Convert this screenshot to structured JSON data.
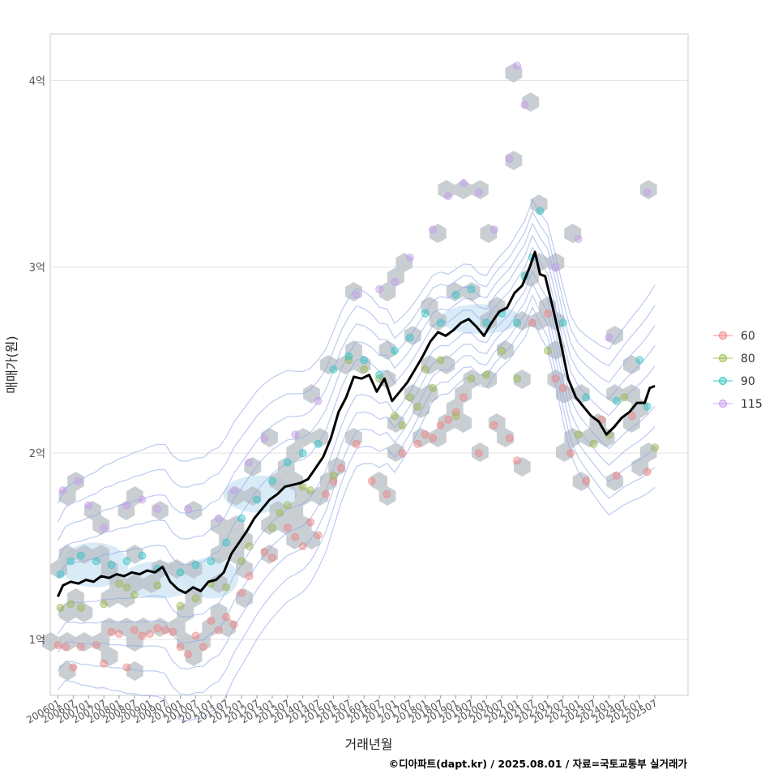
{
  "chart_data": {
    "type": "scatter",
    "xlabel": "거래년월",
    "ylabel": "매매가(원)",
    "caption": "©디아파트(dapt.kr) / 2025.08.01 / 자료=국토교통부 실거래가",
    "x_range": [
      "2005-10",
      "2026-08"
    ],
    "ylim": [
      0.7,
      4.25
    ],
    "y_ticks": [
      1,
      2,
      3,
      4
    ],
    "y_tick_labels": [
      "1억",
      "2억",
      "3억",
      "4억"
    ],
    "x_tick_labels": [
      "200601",
      "200607",
      "200701",
      "200707",
      "200801",
      "200807",
      "200901",
      "200907",
      "201001",
      "201007",
      "201101",
      "201107",
      "201201",
      "201207",
      "201301",
      "201307",
      "201401",
      "201407",
      "201501",
      "201507",
      "201601",
      "201607",
      "201701",
      "201707",
      "201801",
      "201807",
      "201901",
      "201907",
      "202001",
      "202007",
      "202101",
      "202107",
      "202201",
      "202207",
      "202301",
      "202307",
      "202401",
      "202407",
      "202501",
      "202507"
    ],
    "grid": true,
    "legend_position": "right",
    "legend": [
      {
        "label": "60",
        "color": "#F08080"
      },
      {
        "label": "80",
        "color": "#9AB84A"
      },
      {
        "label": "90",
        "color": "#2EC4C4"
      },
      {
        "label": "115",
        "color": "#C59AF0"
      }
    ],
    "median_line_color": "#000000",
    "median_line": [
      [
        "2006-01",
        1.23
      ],
      [
        "2006-03",
        1.29
      ],
      [
        "2006-06",
        1.31
      ],
      [
        "2006-09",
        1.3
      ],
      [
        "2006-12",
        1.32
      ],
      [
        "2007-03",
        1.31
      ],
      [
        "2007-06",
        1.34
      ],
      [
        "2007-09",
        1.33
      ],
      [
        "2007-12",
        1.35
      ],
      [
        "2008-03",
        1.34
      ],
      [
        "2008-06",
        1.36
      ],
      [
        "2008-09",
        1.35
      ],
      [
        "2008-12",
        1.37
      ],
      [
        "2009-03",
        1.36
      ],
      [
        "2009-06",
        1.39
      ],
      [
        "2009-09",
        1.31
      ],
      [
        "2009-12",
        1.27
      ],
      [
        "2010-03",
        1.25
      ],
      [
        "2010-06",
        1.28
      ],
      [
        "2010-09",
        1.26
      ],
      [
        "2010-12",
        1.31
      ],
      [
        "2011-03",
        1.32
      ],
      [
        "2011-06",
        1.36
      ],
      [
        "2011-09",
        1.46
      ],
      [
        "2011-12",
        1.52
      ],
      [
        "2012-03",
        1.58
      ],
      [
        "2012-06",
        1.65
      ],
      [
        "2012-09",
        1.7
      ],
      [
        "2012-12",
        1.75
      ],
      [
        "2013-03",
        1.78
      ],
      [
        "2013-06",
        1.82
      ],
      [
        "2013-09",
        1.83
      ],
      [
        "2013-12",
        1.84
      ],
      [
        "2014-03",
        1.86
      ],
      [
        "2014-06",
        1.92
      ],
      [
        "2014-09",
        1.98
      ],
      [
        "2014-12",
        2.08
      ],
      [
        "2015-03",
        2.22
      ],
      [
        "2015-06",
        2.3
      ],
      [
        "2015-09",
        2.41
      ],
      [
        "2015-12",
        2.4
      ],
      [
        "2016-03",
        2.42
      ],
      [
        "2016-06",
        2.33
      ],
      [
        "2016-09",
        2.4
      ],
      [
        "2016-12",
        2.28
      ],
      [
        "2017-03",
        2.33
      ],
      [
        "2017-06",
        2.38
      ],
      [
        "2017-09",
        2.45
      ],
      [
        "2017-12",
        2.52
      ],
      [
        "2018-03",
        2.6
      ],
      [
        "2018-06",
        2.65
      ],
      [
        "2018-09",
        2.63
      ],
      [
        "2018-12",
        2.66
      ],
      [
        "2019-03",
        2.7
      ],
      [
        "2019-06",
        2.72
      ],
      [
        "2019-09",
        2.68
      ],
      [
        "2019-12",
        2.63
      ],
      [
        "2020-03",
        2.7
      ],
      [
        "2020-06",
        2.76
      ],
      [
        "2020-09",
        2.78
      ],
      [
        "2020-12",
        2.86
      ],
      [
        "2021-03",
        2.9
      ],
      [
        "2021-06",
        3.0
      ],
      [
        "2021-08",
        3.08
      ],
      [
        "2021-10",
        2.96
      ],
      [
        "2021-12",
        2.95
      ],
      [
        "2022-03",
        2.78
      ],
      [
        "2022-06",
        2.6
      ],
      [
        "2022-09",
        2.4
      ],
      [
        "2022-12",
        2.3
      ],
      [
        "2023-03",
        2.25
      ],
      [
        "2023-06",
        2.2
      ],
      [
        "2023-09",
        2.17
      ],
      [
        "2023-12",
        2.1
      ],
      [
        "2024-03",
        2.14
      ],
      [
        "2024-06",
        2.19
      ],
      [
        "2024-09",
        2.22
      ],
      [
        "2024-12",
        2.27
      ],
      [
        "2025-03",
        2.27
      ],
      [
        "2025-05",
        2.35
      ],
      [
        "2025-07",
        2.36
      ]
    ],
    "series": [
      {
        "name": "60",
        "points": [
          [
            "2006-01",
            0.97
          ],
          [
            "2006-04",
            0.96
          ],
          [
            "2006-07",
            0.85
          ],
          [
            "2006-10",
            0.96
          ],
          [
            "2007-04",
            0.97
          ],
          [
            "2007-07",
            0.87
          ],
          [
            "2007-10",
            1.04
          ],
          [
            "2008-01",
            1.03
          ],
          [
            "2008-04",
            0.85
          ],
          [
            "2008-07",
            1.05
          ],
          [
            "2008-10",
            1.02
          ],
          [
            "2009-01",
            1.03
          ],
          [
            "2009-04",
            1.06
          ],
          [
            "2009-07",
            1.05
          ],
          [
            "2009-10",
            1.04
          ],
          [
            "2010-01",
            0.96
          ],
          [
            "2010-04",
            0.92
          ],
          [
            "2010-07",
            1.02
          ],
          [
            "2010-10",
            0.96
          ],
          [
            "2011-01",
            1.1
          ],
          [
            "2011-04",
            1.05
          ],
          [
            "2011-07",
            1.12
          ],
          [
            "2011-10",
            1.08
          ],
          [
            "2012-01",
            1.25
          ],
          [
            "2012-04",
            1.34
          ],
          [
            "2012-10",
            1.47
          ],
          [
            "2013-01",
            1.44
          ],
          [
            "2013-07",
            1.6
          ],
          [
            "2013-10",
            1.55
          ],
          [
            "2014-01",
            1.5
          ],
          [
            "2014-04",
            1.63
          ],
          [
            "2014-07",
            1.56
          ],
          [
            "2014-10",
            1.78
          ],
          [
            "2015-01",
            1.85
          ],
          [
            "2015-04",
            1.92
          ],
          [
            "2015-10",
            2.05
          ],
          [
            "2016-04",
            1.85
          ],
          [
            "2016-10",
            1.78
          ],
          [
            "2017-04",
            2.0
          ],
          [
            "2017-10",
            2.05
          ],
          [
            "2018-01",
            2.1
          ],
          [
            "2018-04",
            2.08
          ],
          [
            "2018-07",
            2.15
          ],
          [
            "2018-10",
            2.18
          ],
          [
            "2019-01",
            2.22
          ],
          [
            "2019-04",
            2.3
          ],
          [
            "2019-10",
            2.0
          ],
          [
            "2020-04",
            2.15
          ],
          [
            "2020-10",
            2.08
          ],
          [
            "2021-01",
            1.96
          ],
          [
            "2021-07",
            2.7
          ],
          [
            "2022-01",
            2.75
          ],
          [
            "2022-04",
            2.4
          ],
          [
            "2022-07",
            2.35
          ],
          [
            "2022-10",
            2.0
          ],
          [
            "2023-04",
            1.85
          ],
          [
            "2023-10",
            2.18
          ],
          [
            "2024-04",
            1.88
          ],
          [
            "2024-10",
            2.2
          ],
          [
            "2025-04",
            1.9
          ]
        ]
      },
      {
        "name": "80",
        "points": [
          [
            "2006-02",
            1.17
          ],
          [
            "2006-06",
            1.19
          ],
          [
            "2006-10",
            1.17
          ],
          [
            "2007-07",
            1.19
          ],
          [
            "2008-01",
            1.3
          ],
          [
            "2008-04",
            1.28
          ],
          [
            "2008-07",
            1.24
          ],
          [
            "2009-04",
            1.29
          ],
          [
            "2010-01",
            1.18
          ],
          [
            "2010-07",
            1.22
          ],
          [
            "2011-01",
            1.3
          ],
          [
            "2011-07",
            1.28
          ],
          [
            "2012-01",
            1.42
          ],
          [
            "2012-04",
            1.5
          ],
          [
            "2013-01",
            1.6
          ],
          [
            "2013-04",
            1.68
          ],
          [
            "2013-07",
            1.72
          ],
          [
            "2014-01",
            1.82
          ],
          [
            "2014-04",
            1.8
          ],
          [
            "2015-01",
            1.88
          ],
          [
            "2015-07",
            2.5
          ],
          [
            "2016-01",
            2.45
          ],
          [
            "2016-07",
            2.4
          ],
          [
            "2017-01",
            2.2
          ],
          [
            "2017-04",
            2.15
          ],
          [
            "2017-07",
            2.3
          ],
          [
            "2017-10",
            2.25
          ],
          [
            "2018-01",
            2.45
          ],
          [
            "2018-04",
            2.35
          ],
          [
            "2018-07",
            2.5
          ],
          [
            "2019-01",
            2.2
          ],
          [
            "2019-07",
            2.4
          ],
          [
            "2020-01",
            2.42
          ],
          [
            "2020-07",
            2.55
          ],
          [
            "2021-01",
            2.4
          ],
          [
            "2022-01",
            2.55
          ],
          [
            "2023-01",
            2.1
          ],
          [
            "2023-07",
            2.05
          ],
          [
            "2024-01",
            2.1
          ],
          [
            "2024-07",
            2.3
          ],
          [
            "2025-07",
            2.03
          ]
        ]
      },
      {
        "name": "90",
        "points": [
          [
            "2006-02",
            1.35
          ],
          [
            "2006-06",
            1.42
          ],
          [
            "2006-10",
            1.45
          ],
          [
            "2007-04",
            1.42
          ],
          [
            "2007-10",
            1.4
          ],
          [
            "2008-04",
            1.42
          ],
          [
            "2008-10",
            1.45
          ],
          [
            "2009-04",
            1.38
          ],
          [
            "2010-01",
            1.36
          ],
          [
            "2010-07",
            1.4
          ],
          [
            "2011-01",
            1.42
          ],
          [
            "2011-07",
            1.52
          ],
          [
            "2012-01",
            1.65
          ],
          [
            "2012-07",
            1.75
          ],
          [
            "2013-01",
            1.85
          ],
          [
            "2013-07",
            1.95
          ],
          [
            "2014-01",
            2.0
          ],
          [
            "2014-07",
            2.05
          ],
          [
            "2015-01",
            2.45
          ],
          [
            "2015-07",
            2.52
          ],
          [
            "2016-01",
            2.5
          ],
          [
            "2016-07",
            2.42
          ],
          [
            "2017-01",
            2.55
          ],
          [
            "2017-07",
            2.62
          ],
          [
            "2018-01",
            2.75
          ],
          [
            "2018-07",
            2.7
          ],
          [
            "2019-01",
            2.85
          ],
          [
            "2019-07",
            2.88
          ],
          [
            "2020-01",
            2.7
          ],
          [
            "2020-07",
            2.75
          ],
          [
            "2021-01",
            2.7
          ],
          [
            "2021-04",
            2.95
          ],
          [
            "2021-07",
            3.05
          ],
          [
            "2021-10",
            3.3
          ],
          [
            "2022-07",
            2.7
          ],
          [
            "2023-04",
            2.3
          ],
          [
            "2024-04",
            2.28
          ],
          [
            "2025-01",
            2.5
          ],
          [
            "2025-04",
            2.25
          ]
        ]
      },
      {
        "name": "115",
        "points": [
          [
            "2006-03",
            1.8
          ],
          [
            "2006-09",
            1.85
          ],
          [
            "2007-01",
            1.72
          ],
          [
            "2007-07",
            1.6
          ],
          [
            "2008-04",
            1.72
          ],
          [
            "2008-10",
            1.75
          ],
          [
            "2009-04",
            1.7
          ],
          [
            "2010-04",
            1.7
          ],
          [
            "2011-04",
            1.65
          ],
          [
            "2011-10",
            1.8
          ],
          [
            "2012-04",
            1.95
          ],
          [
            "2012-10",
            2.08
          ],
          [
            "2013-10",
            2.1
          ],
          [
            "2014-07",
            2.28
          ],
          [
            "2015-10",
            2.85
          ],
          [
            "2016-07",
            2.88
          ],
          [
            "2017-01",
            2.92
          ],
          [
            "2017-07",
            3.05
          ],
          [
            "2018-04",
            3.2
          ],
          [
            "2018-10",
            3.38
          ],
          [
            "2019-04",
            3.45
          ],
          [
            "2019-10",
            3.4
          ],
          [
            "2020-04",
            3.2
          ],
          [
            "2020-10",
            3.58
          ],
          [
            "2021-01",
            4.08
          ],
          [
            "2021-04",
            3.87
          ],
          [
            "2022-04",
            3.0
          ],
          [
            "2023-01",
            3.15
          ],
          [
            "2024-01",
            2.62
          ],
          [
            "2025-04",
            3.4
          ]
        ]
      }
    ]
  }
}
